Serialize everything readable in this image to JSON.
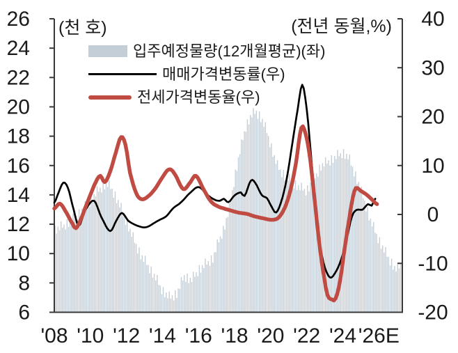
{
  "page": {
    "background": "#ffffff"
  },
  "chart_data": {
    "type": "combo-bar-line",
    "title": "",
    "unit_label_left": "(천 호)",
    "unit_label_right": "(전년 동월,%)",
    "grid": "off",
    "legend_position": "top-left-inside",
    "x_axis": {
      "domain_start": 2008.0,
      "domain_end": 2027.3,
      "tick_years": [
        2008,
        2010,
        2012,
        2014,
        2016,
        2018,
        2020,
        2022,
        2024,
        2026
      ],
      "tick_labels": [
        "'08",
        "'10",
        "'12",
        "'14",
        "'16",
        "'18",
        "'20",
        "'22",
        "'24",
        "'26E"
      ]
    },
    "y_axis_left": {
      "min": 6,
      "max": 26,
      "ticks": [
        26,
        24,
        22,
        20,
        18,
        16,
        14,
        12,
        10,
        8,
        6
      ]
    },
    "y_axis_right": {
      "min": -20,
      "max": 40,
      "ticks": [
        40,
        30,
        20,
        10,
        0,
        -10,
        -20
      ]
    },
    "sampling_note": "points are [year_decimal, value] anchors read off the chart; bar series is monthly (12-month moving average envelope), line series are year-over-year % change",
    "series": [
      {
        "id": "supply",
        "label": "입주예정물량(12개월평균)(좌)",
        "type": "bar",
        "axis": "left",
        "color": "#c4ced6",
        "points": [
          [
            2008.0,
            11.6
          ],
          [
            2008.5,
            11.9
          ],
          [
            2009.0,
            12.3
          ],
          [
            2009.5,
            12.9
          ],
          [
            2010.0,
            13.6
          ],
          [
            2010.5,
            14.4
          ],
          [
            2010.9,
            14.8
          ],
          [
            2011.2,
            14.4
          ],
          [
            2011.6,
            13.4
          ],
          [
            2012.0,
            12.2
          ],
          [
            2012.4,
            11.0
          ],
          [
            2012.8,
            9.9
          ],
          [
            2013.2,
            9.2
          ],
          [
            2013.6,
            8.4
          ],
          [
            2014.0,
            7.5
          ],
          [
            2014.4,
            7.0
          ],
          [
            2014.8,
            7.3
          ],
          [
            2015.2,
            8.5
          ],
          [
            2015.6,
            8.2
          ],
          [
            2016.0,
            8.9
          ],
          [
            2016.4,
            9.3
          ],
          [
            2016.8,
            9.7
          ],
          [
            2017.1,
            10.8
          ],
          [
            2017.4,
            11.7
          ],
          [
            2017.7,
            13.0
          ],
          [
            2018.0,
            15.2
          ],
          [
            2018.3,
            17.0
          ],
          [
            2018.6,
            18.6
          ],
          [
            2018.9,
            19.4
          ],
          [
            2019.2,
            19.7
          ],
          [
            2019.5,
            19.2
          ],
          [
            2019.8,
            18.3
          ],
          [
            2020.1,
            17.0
          ],
          [
            2020.4,
            15.9
          ],
          [
            2020.8,
            15.3
          ],
          [
            2021.2,
            14.9
          ],
          [
            2021.6,
            14.5
          ],
          [
            2022.0,
            14.3
          ],
          [
            2022.4,
            15.1
          ],
          [
            2022.8,
            16.0
          ],
          [
            2023.2,
            16.3
          ],
          [
            2023.6,
            16.6
          ],
          [
            2024.0,
            16.9
          ],
          [
            2024.3,
            16.6
          ],
          [
            2024.6,
            15.7
          ],
          [
            2024.9,
            14.7
          ],
          [
            2025.2,
            13.6
          ],
          [
            2025.5,
            12.4
          ],
          [
            2025.8,
            11.5
          ],
          [
            2026.1,
            10.7
          ],
          [
            2026.4,
            10.0
          ],
          [
            2026.7,
            9.4
          ],
          [
            2026.9,
            9.0
          ],
          [
            2027.05,
            8.9
          ],
          [
            2027.2,
            9.3
          ]
        ]
      },
      {
        "id": "sales",
        "label": "매매가격변동률(우)",
        "type": "line",
        "axis": "right",
        "color": "#000000",
        "points": [
          [
            2008.0,
            2.4
          ],
          [
            2008.25,
            4.6
          ],
          [
            2008.5,
            6.5
          ],
          [
            2008.75,
            5.5
          ],
          [
            2009.0,
            2.0
          ],
          [
            2009.35,
            -2.3
          ],
          [
            2009.7,
            0.8
          ],
          [
            2010.2,
            2.8
          ],
          [
            2010.6,
            -0.5
          ],
          [
            2011.1,
            -3.4
          ],
          [
            2011.45,
            -1.2
          ],
          [
            2011.75,
            0.3
          ],
          [
            2012.1,
            -1.3
          ],
          [
            2012.6,
            -2.3
          ],
          [
            2013.1,
            -2.6
          ],
          [
            2013.75,
            -1.3
          ],
          [
            2014.2,
            -0.4
          ],
          [
            2014.6,
            1.3
          ],
          [
            2015.0,
            2.4
          ],
          [
            2015.5,
            4.3
          ],
          [
            2016.0,
            5.6
          ],
          [
            2016.5,
            4.0
          ],
          [
            2016.9,
            3.0
          ],
          [
            2017.2,
            2.8
          ],
          [
            2017.4,
            3.2
          ],
          [
            2017.65,
            2.5
          ],
          [
            2018.0,
            3.9
          ],
          [
            2018.35,
            4.5
          ],
          [
            2018.55,
            3.8
          ],
          [
            2018.9,
            6.9
          ],
          [
            2019.15,
            6.4
          ],
          [
            2019.5,
            4.0
          ],
          [
            2019.8,
            3.3
          ],
          [
            2020.05,
            1.6
          ],
          [
            2020.3,
            0.4
          ],
          [
            2020.6,
            2.8
          ],
          [
            2020.9,
            7.5
          ],
          [
            2021.2,
            14.5
          ],
          [
            2021.5,
            21.5
          ],
          [
            2021.75,
            26.5
          ],
          [
            2022.0,
            21.5
          ],
          [
            2022.25,
            11.5
          ],
          [
            2022.5,
            1.5
          ],
          [
            2022.75,
            -6.5
          ],
          [
            2023.0,
            -10.8
          ],
          [
            2023.3,
            -12.9
          ],
          [
            2023.6,
            -11.8
          ],
          [
            2023.9,
            -9.3
          ],
          [
            2024.2,
            -5.3
          ],
          [
            2024.5,
            -0.5
          ],
          [
            2024.75,
            0.9
          ],
          [
            2025.1,
            1.0
          ],
          [
            2025.4,
            2.1
          ],
          [
            2025.6,
            1.8
          ],
          [
            2025.8,
            3.2
          ]
        ]
      },
      {
        "id": "jeonse",
        "label": "전세가격변동율(우)",
        "type": "line",
        "axis": "right",
        "color": "#bf4b43",
        "points": [
          [
            2008.0,
            1.2
          ],
          [
            2008.3,
            2.2
          ],
          [
            2008.6,
            0.8
          ],
          [
            2009.0,
            -1.8
          ],
          [
            2009.2,
            -2.8
          ],
          [
            2009.45,
            -1.2
          ],
          [
            2009.7,
            1.2
          ],
          [
            2010.0,
            4.0
          ],
          [
            2010.3,
            6.6
          ],
          [
            2010.55,
            7.9
          ],
          [
            2010.8,
            6.6
          ],
          [
            2011.1,
            8.8
          ],
          [
            2011.4,
            12.5
          ],
          [
            2011.7,
            15.8
          ],
          [
            2011.95,
            14.2
          ],
          [
            2012.2,
            8.5
          ],
          [
            2012.55,
            4.3
          ],
          [
            2012.85,
            3.1
          ],
          [
            2013.2,
            3.7
          ],
          [
            2013.6,
            5.3
          ],
          [
            2014.0,
            7.6
          ],
          [
            2014.35,
            9.2
          ],
          [
            2014.65,
            8.4
          ],
          [
            2015.15,
            5.2
          ],
          [
            2015.55,
            6.6
          ],
          [
            2015.85,
            7.9
          ],
          [
            2016.3,
            5.0
          ],
          [
            2016.7,
            2.6
          ],
          [
            2017.1,
            1.6
          ],
          [
            2017.5,
            1.1
          ],
          [
            2018.2,
            0.4
          ],
          [
            2018.7,
            0.1
          ],
          [
            2019.1,
            -0.4
          ],
          [
            2019.6,
            -0.8
          ],
          [
            2020.1,
            -1.1
          ],
          [
            2020.45,
            -0.6
          ],
          [
            2020.8,
            1.5
          ],
          [
            2021.1,
            5.0
          ],
          [
            2021.4,
            10.5
          ],
          [
            2021.7,
            17.7
          ],
          [
            2021.95,
            16.3
          ],
          [
            2022.2,
            11.0
          ],
          [
            2022.45,
            2.5
          ],
          [
            2022.7,
            -6.0
          ],
          [
            2022.95,
            -12.5
          ],
          [
            2023.15,
            -16.5
          ],
          [
            2023.4,
            -17.4
          ],
          [
            2023.6,
            -17.2
          ],
          [
            2023.85,
            -13.5
          ],
          [
            2024.1,
            -7.0
          ],
          [
            2024.35,
            -1.0
          ],
          [
            2024.55,
            3.4
          ],
          [
            2024.72,
            5.4
          ],
          [
            2025.0,
            4.8
          ],
          [
            2025.3,
            4.1
          ],
          [
            2025.6,
            3.1
          ],
          [
            2025.9,
            2.1
          ]
        ]
      }
    ]
  }
}
